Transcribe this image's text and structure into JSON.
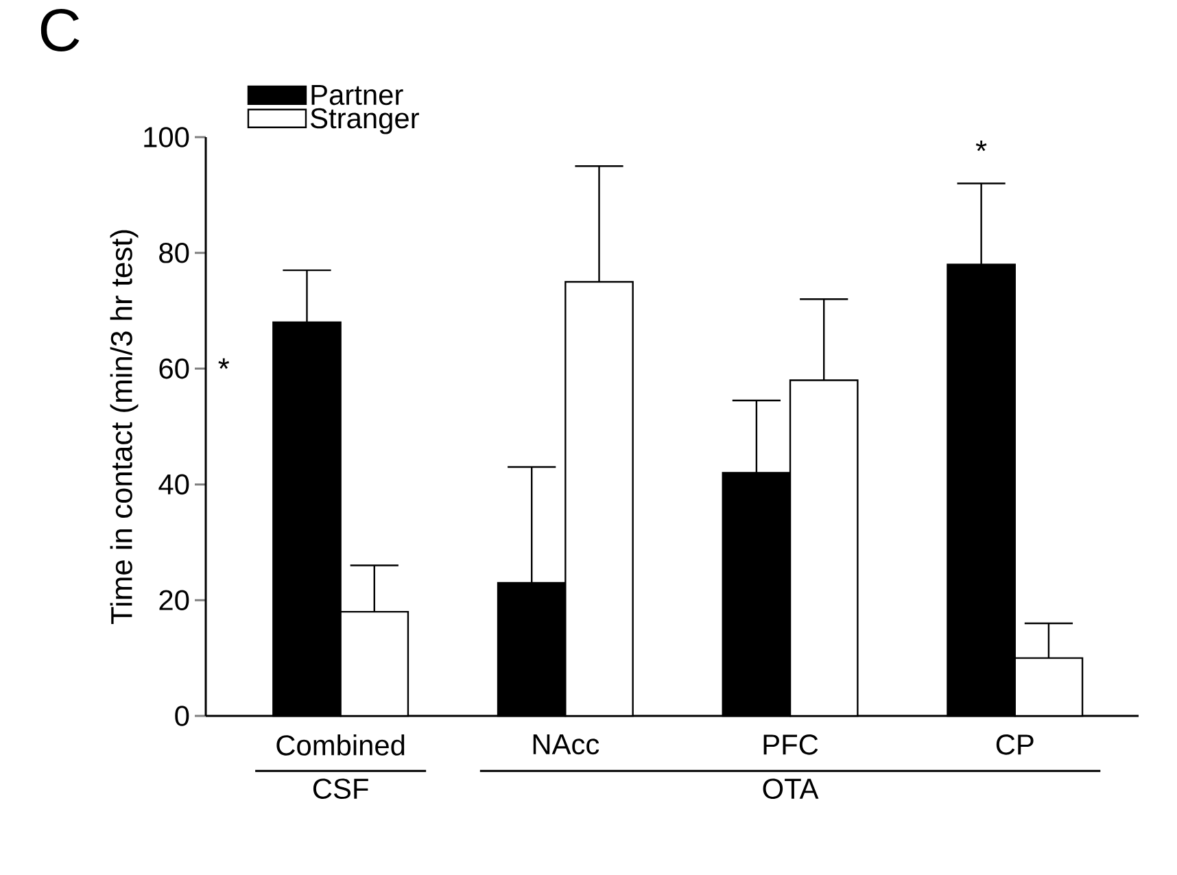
{
  "chart_data": {
    "type": "bar",
    "ylabel": "Time in contact (min/3 hr test)",
    "categories": [
      "Combined",
      "NAcc",
      "PFC",
      "CP"
    ],
    "series": [
      {
        "name": "Partner",
        "color": "#000000",
        "values": [
          68,
          23,
          42,
          78
        ],
        "errors": [
          [
            68,
            77
          ],
          [
            23,
            43
          ],
          [
            42,
            54.5
          ],
          [
            78,
            92
          ]
        ]
      },
      {
        "name": "Stranger",
        "color": "#ffffff",
        "values": [
          18,
          75,
          58,
          10
        ],
        "errors": [
          [
            18,
            26
          ],
          [
            75,
            95
          ],
          [
            58,
            72
          ],
          [
            10,
            16
          ]
        ]
      }
    ],
    "ylim": [
      0,
      100
    ],
    "yticks": [
      0,
      20,
      40,
      60,
      80,
      100
    ],
    "grid": false,
    "legend": "top left",
    "annotations": [
      "C",
      "*",
      "*",
      "CSF",
      "OTA"
    ]
  }
}
